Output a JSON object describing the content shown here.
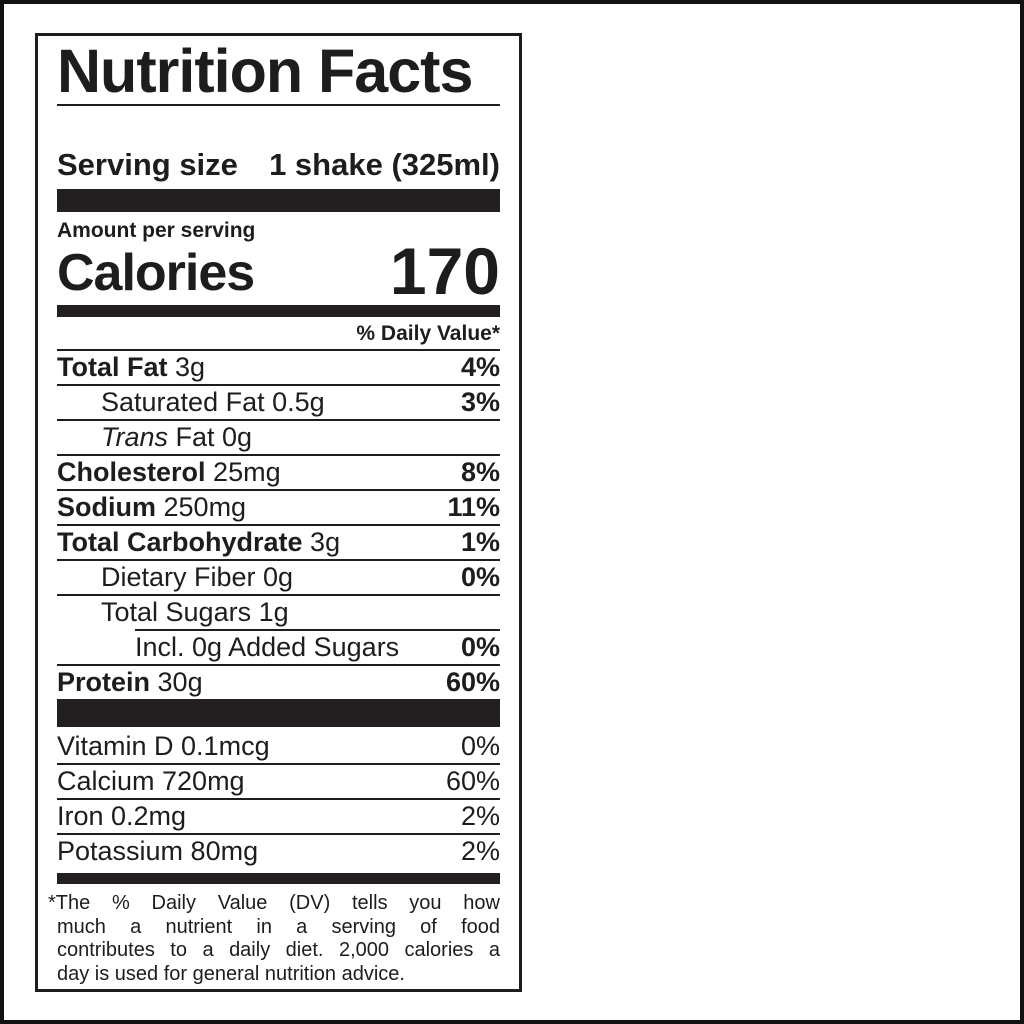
{
  "label": {
    "title": "Nutrition Facts",
    "serving": {
      "label": "Serving size",
      "value": "1 shake (325ml)"
    },
    "calories": {
      "heading": "Amount per serving",
      "label": "Calories",
      "value": "170"
    },
    "dv_header": "% Daily Value*",
    "nutrients": [
      {
        "bold": "Total Fat",
        "text": "3g",
        "dv": "4%"
      },
      {
        "bold": "",
        "text": "Saturated Fat 0.5g",
        "dv": "3%"
      },
      {
        "italic": "Trans",
        "text": "Fat 0g",
        "dv": ""
      },
      {
        "bold": "Cholesterol",
        "text": "25mg",
        "dv": "8%"
      },
      {
        "bold": "Sodium",
        "text": "250mg",
        "dv": "11%"
      },
      {
        "bold": "Total Carbohydrate",
        "text": "3g",
        "dv": "1%"
      },
      {
        "bold": "",
        "text": "Dietary Fiber 0g",
        "dv": "0%"
      },
      {
        "bold": "",
        "text": "Total Sugars 1g",
        "dv": ""
      },
      {
        "bold": "",
        "text": "Incl. 0g Added Sugars",
        "dv": "0%"
      },
      {
        "bold": "Protein",
        "text": "30g",
        "dv": "60%"
      }
    ],
    "vitamins": [
      {
        "text": "Vitamin D 0.1mcg",
        "dv": "0%"
      },
      {
        "text": "Calcium 720mg",
        "dv": "60%"
      },
      {
        "text": "Iron 0.2mg",
        "dv": "2%"
      },
      {
        "text": "Potassium 80mg",
        "dv": "2%"
      }
    ],
    "footnote_lines": [
      "*The % Daily Value (DV) tells you how",
      "much a nutrient in a serving of food",
      "contributes to a daily diet. 2,000 calories a",
      "day is used for general nutrition advice."
    ],
    "colors": {
      "ink": "#1d1d1d",
      "bar": "#231f20",
      "background": "#ffffff"
    }
  }
}
